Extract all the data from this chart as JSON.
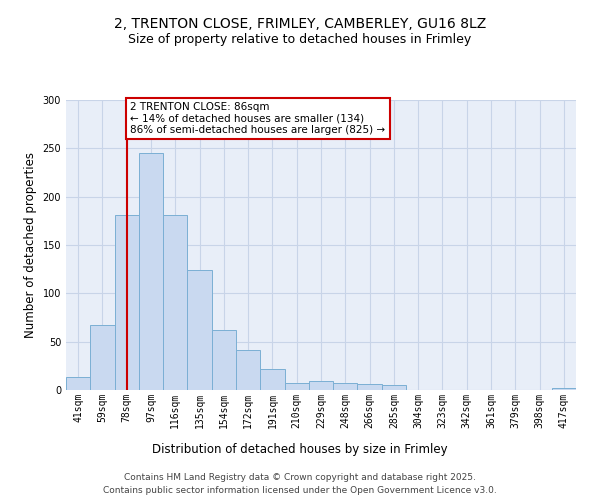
{
  "title_line1": "2, TRENTON CLOSE, FRIMLEY, CAMBERLEY, GU16 8LZ",
  "title_line2": "Size of property relative to detached houses in Frimley",
  "xlabel": "Distribution of detached houses by size in Frimley",
  "ylabel": "Number of detached properties",
  "categories": [
    "41sqm",
    "59sqm",
    "78sqm",
    "97sqm",
    "116sqm",
    "135sqm",
    "154sqm",
    "172sqm",
    "191sqm",
    "210sqm",
    "229sqm",
    "248sqm",
    "266sqm",
    "285sqm",
    "304sqm",
    "323sqm",
    "342sqm",
    "361sqm",
    "379sqm",
    "398sqm",
    "417sqm"
  ],
  "values": [
    13,
    67,
    181,
    245,
    181,
    124,
    62,
    41,
    22,
    7,
    9,
    7,
    6,
    5,
    0,
    0,
    0,
    0,
    0,
    0,
    2
  ],
  "bar_color": "#c9d9f0",
  "bar_edge_color": "#7bafd4",
  "property_bin_index": 2,
  "vline_color": "#cc0000",
  "annotation_text": "2 TRENTON CLOSE: 86sqm\n← 14% of detached houses are smaller (134)\n86% of semi-detached houses are larger (825) →",
  "annotation_box_color": "#ffffff",
  "annotation_box_edge_color": "#cc0000",
  "ylim": [
    0,
    300
  ],
  "yticks": [
    0,
    50,
    100,
    150,
    200,
    250,
    300
  ],
  "grid_color": "#c8d4e8",
  "bg_color": "#e8eef8",
  "footer_text": "Contains HM Land Registry data © Crown copyright and database right 2025.\nContains public sector information licensed under the Open Government Licence v3.0.",
  "title_fontsize": 10,
  "subtitle_fontsize": 9,
  "axis_label_fontsize": 8.5,
  "tick_fontsize": 7,
  "annotation_fontsize": 7.5,
  "footer_fontsize": 6.5
}
